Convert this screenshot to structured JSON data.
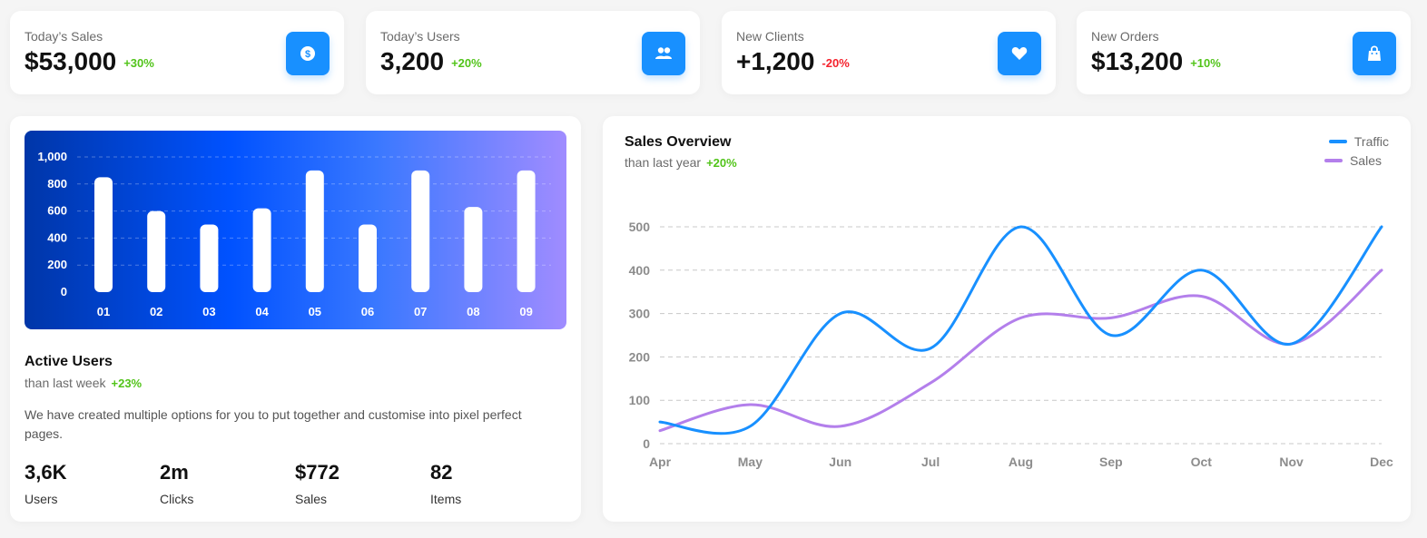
{
  "stats": [
    {
      "label": "Today’s Sales",
      "value": "$53,000",
      "change": "+30%",
      "trend": "pos",
      "icon": "dollar-icon"
    },
    {
      "label": "Today’s Users",
      "value": "3,200",
      "change": "+20%",
      "trend": "pos",
      "icon": "users-icon"
    },
    {
      "label": "New Clients",
      "value": "+1,200",
      "change": "-20%",
      "trend": "neg",
      "icon": "heart-icon"
    },
    {
      "label": "New Orders",
      "value": "$13,200",
      "change": "+10%",
      "trend": "pos",
      "icon": "shopping-bag-icon"
    }
  ],
  "active_users": {
    "title": "Active Users",
    "subtitle": "than last week",
    "change": "+23%",
    "description": "We have created multiple options for you to put together and customise into pixel perfect pages.",
    "metrics": [
      {
        "value": "3,6K",
        "label": "Users"
      },
      {
        "value": "2m",
        "label": "Clicks"
      },
      {
        "value": "$772",
        "label": "Sales"
      },
      {
        "value": "82",
        "label": "Items"
      }
    ]
  },
  "sales_overview": {
    "title": "Sales Overview",
    "subtitle": "than last year",
    "change": "+20%"
  },
  "colors": {
    "accent": "#1890ff",
    "positive": "#52c41a",
    "negative": "#f5222d",
    "traffic": "#1890ff",
    "sales": "#b37feb"
  },
  "chart_data": [
    {
      "type": "bar",
      "categories": [
        "01",
        "02",
        "03",
        "04",
        "05",
        "06",
        "07",
        "08",
        "09"
      ],
      "values": [
        850,
        600,
        500,
        620,
        900,
        500,
        900,
        630,
        900
      ],
      "yticks": [
        "0",
        "200",
        "400",
        "600",
        "800",
        "1,000"
      ],
      "ylim": [
        0,
        1000
      ],
      "grid": true
    },
    {
      "type": "line",
      "categories": [
        "Apr",
        "May",
        "Jun",
        "Jul",
        "Aug",
        "Sep",
        "Oct",
        "Nov",
        "Dec"
      ],
      "series": [
        {
          "name": "Traffic",
          "values": [
            50,
            40,
            300,
            220,
            500,
            250,
            400,
            230,
            500
          ]
        },
        {
          "name": "Sales",
          "values": [
            30,
            90,
            40,
            140,
            290,
            290,
            340,
            230,
            400
          ]
        }
      ],
      "yticks": [
        "0",
        "100",
        "200",
        "300",
        "400",
        "500"
      ],
      "ylim": [
        0,
        500
      ],
      "grid": true,
      "legend": "top-right"
    }
  ]
}
